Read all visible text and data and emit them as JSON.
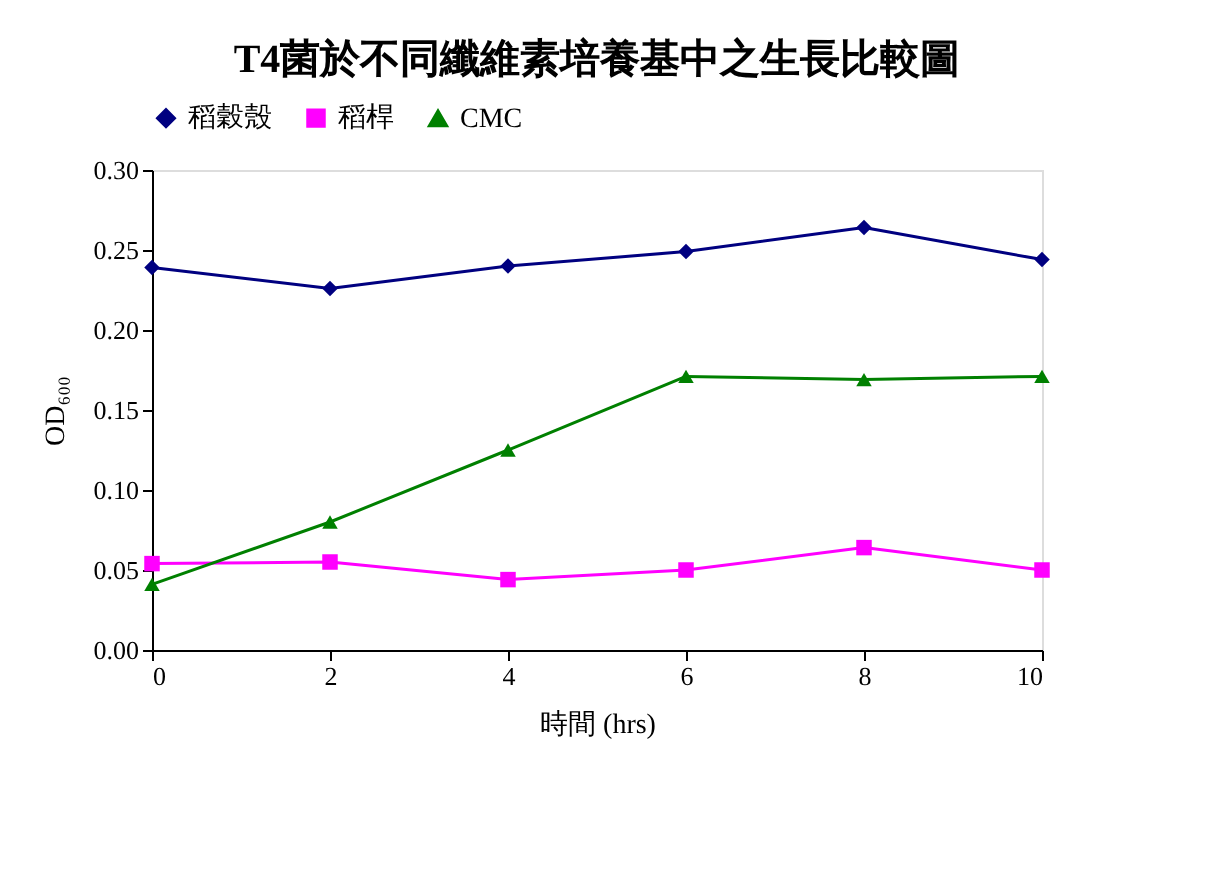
{
  "chart_data": {
    "type": "line",
    "title": "T4菌於不同纖維素培養基中之生長比較圖",
    "xlabel": "時間 (hrs)",
    "ylabel": "OD₆₀₀",
    "x": [
      0,
      2,
      4,
      6,
      8,
      10
    ],
    "series": [
      {
        "name": "稻穀殼",
        "color": "#000080",
        "marker": "diamond",
        "values": [
          0.239,
          0.226,
          0.24,
          0.249,
          0.264,
          0.244
        ]
      },
      {
        "name": "稻桿",
        "color": "#ff00ff",
        "marker": "square",
        "values": [
          0.054,
          0.055,
          0.044,
          0.05,
          0.064,
          0.05
        ]
      },
      {
        "name": "CMC",
        "color": "#008000",
        "marker": "triangle",
        "values": [
          0.041,
          0.08,
          0.125,
          0.171,
          0.169,
          0.171
        ]
      }
    ],
    "xlim": [
      0,
      10
    ],
    "xticks": [
      0,
      2,
      4,
      6,
      8,
      10
    ],
    "ylim": [
      0,
      0.3
    ],
    "yticks": [
      {
        "value": 0,
        "label": "0.00"
      },
      {
        "value": 0.05,
        "label": "0.05"
      },
      {
        "value": 0.1,
        "label": "0.10"
      },
      {
        "value": 0.15,
        "label": "0.15"
      },
      {
        "value": 0.2,
        "label": "0.20"
      },
      {
        "value": 0.25,
        "label": "0.25"
      },
      {
        "value": 0.3,
        "label": "0.30"
      }
    ],
    "grid": false,
    "legend": "top",
    "line_style": "solid"
  }
}
